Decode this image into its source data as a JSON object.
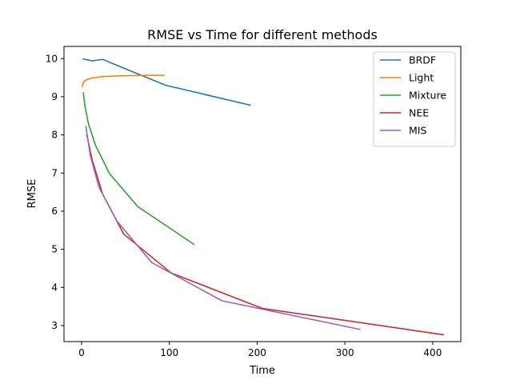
{
  "chart_data": {
    "type": "line",
    "title": "RMSE vs Time for different methods",
    "xlabel": "Time",
    "ylabel": "RMSE",
    "xlim": [
      -20,
      432
    ],
    "ylim": [
      2.58,
      10.32
    ],
    "xticks": [
      0,
      100,
      200,
      300,
      400
    ],
    "yticks": [
      3,
      4,
      5,
      6,
      7,
      8,
      9,
      10
    ],
    "legend_position": "top-right",
    "grid": false,
    "series": [
      {
        "name": "BRDF",
        "color": "#1f77b4",
        "points": [
          [
            2,
            9.99
          ],
          [
            12,
            9.94
          ],
          [
            24,
            9.98
          ],
          [
            48,
            9.75
          ],
          [
            96,
            9.3
          ],
          [
            192,
            8.78
          ]
        ]
      },
      {
        "name": "Light",
        "color": "#ff7f0e",
        "points": [
          [
            1,
            9.27
          ],
          [
            2,
            9.37
          ],
          [
            4,
            9.42
          ],
          [
            6,
            9.45
          ],
          [
            9,
            9.47
          ],
          [
            12,
            9.49
          ],
          [
            18,
            9.51
          ],
          [
            24,
            9.53
          ],
          [
            36,
            9.54
          ],
          [
            48,
            9.55
          ],
          [
            72,
            9.56
          ],
          [
            94,
            9.56
          ]
        ]
      },
      {
        "name": "Mixture",
        "color": "#2ca02c",
        "points": [
          [
            2,
            9.1
          ],
          [
            4,
            8.74
          ],
          [
            8,
            8.28
          ],
          [
            16,
            7.72
          ],
          [
            32,
            6.98
          ],
          [
            64,
            6.12
          ],
          [
            128,
            5.13
          ]
        ]
      },
      {
        "name": "NEE",
        "color": "#d62728",
        "points": [
          [
            6,
            8.0
          ],
          [
            12,
            7.35
          ],
          [
            24,
            6.45
          ],
          [
            48,
            5.4
          ],
          [
            102,
            4.38
          ],
          [
            206,
            3.45
          ],
          [
            412,
            2.76
          ]
        ]
      },
      {
        "name": "MIS",
        "color": "#9467bd",
        "points": [
          [
            5,
            8.22
          ],
          [
            10,
            7.45
          ],
          [
            20,
            6.62
          ],
          [
            40,
            5.75
          ],
          [
            80,
            4.65
          ],
          [
            160,
            3.65
          ],
          [
            317,
            2.9
          ]
        ]
      }
    ]
  }
}
